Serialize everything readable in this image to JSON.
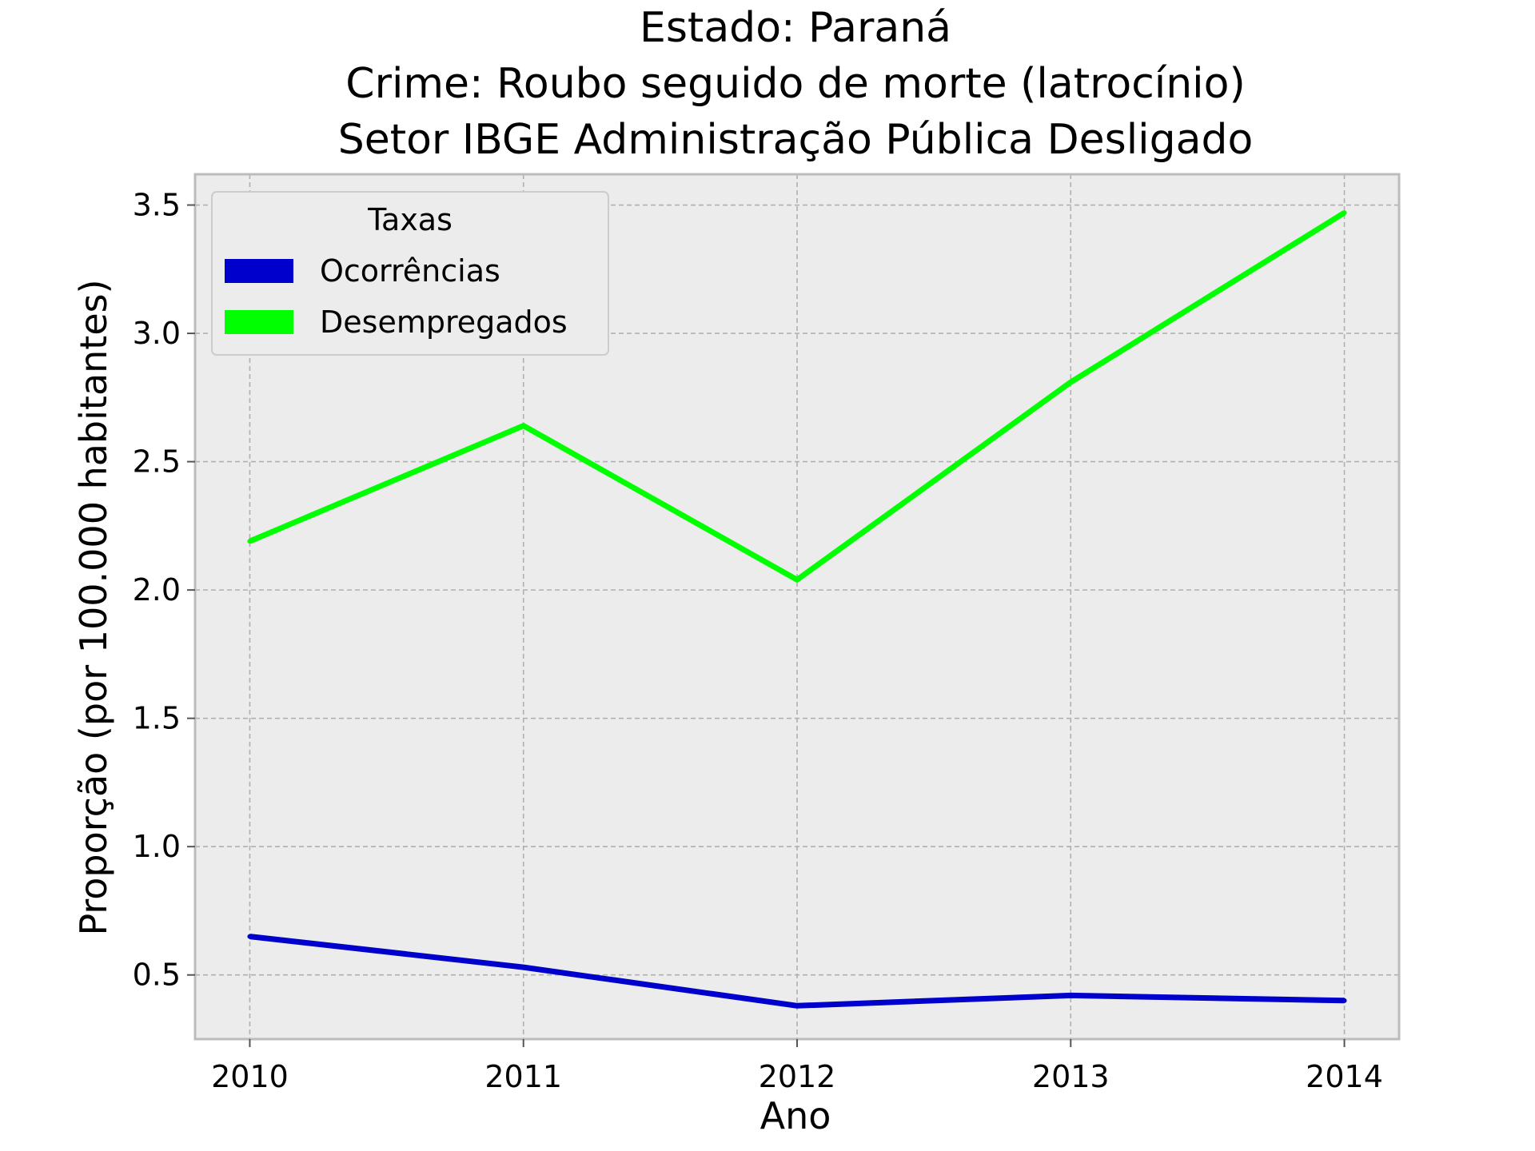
{
  "chart_data": {
    "type": "line",
    "title_lines": [
      "Estado: Paraná",
      "Crime: Roubo seguido de morte (latrocínio)",
      "Setor IBGE  Administração Pública   Desligado"
    ],
    "xlabel": "Ano",
    "ylabel": "Proporção (por 100.000 habitantes)",
    "x": [
      2010,
      2011,
      2012,
      2013,
      2014
    ],
    "x_tick_labels": [
      "2010",
      "2011",
      "2012",
      "2013",
      "2014"
    ],
    "y_ticks": [
      0.5,
      1.0,
      1.5,
      2.0,
      2.5,
      3.0,
      3.5
    ],
    "y_tick_labels": [
      "0.5",
      "1.0",
      "1.5",
      "2.0",
      "2.5",
      "3.0",
      "3.5"
    ],
    "xlim": [
      2009.8,
      2014.2
    ],
    "ylim": [
      0.25,
      3.62
    ],
    "grid": true,
    "legend": {
      "title": "Taxas",
      "placement": "top-left"
    },
    "series": [
      {
        "name": "Ocorrências",
        "color": "#0000cc",
        "values": [
          0.65,
          0.53,
          0.38,
          0.42,
          0.4
        ]
      },
      {
        "name": "Desempregados",
        "color": "#00ff00",
        "values": [
          2.19,
          2.64,
          2.04,
          2.81,
          3.47
        ]
      }
    ],
    "colors": {
      "plot_background": "#ececec",
      "grid": "#b0b0b0",
      "frame": "#bcbcbc"
    }
  }
}
